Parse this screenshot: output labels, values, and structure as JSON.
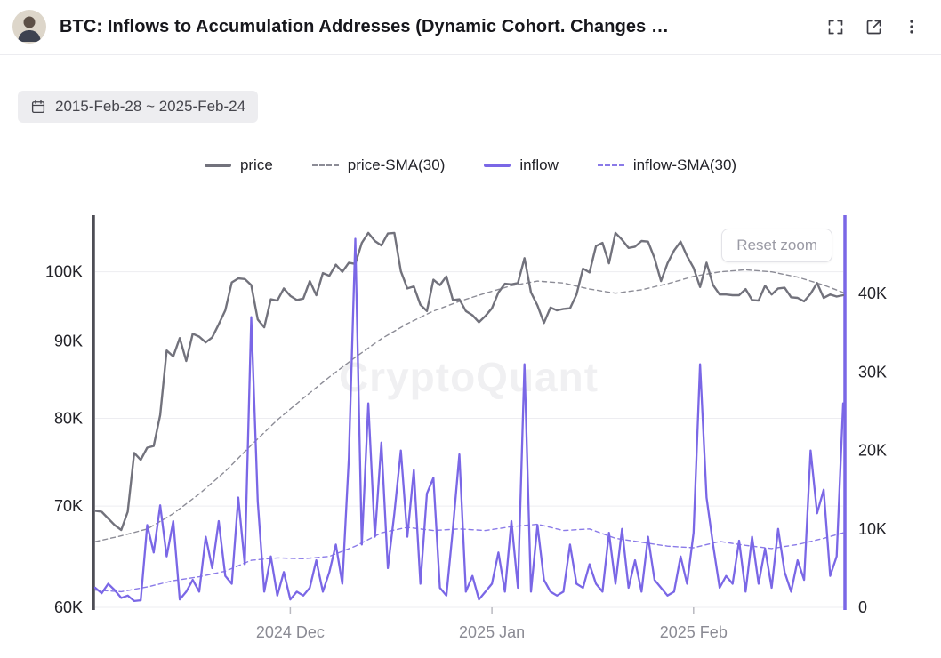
{
  "header": {
    "title": "BTC: Inflows to Accumulation Addresses (Dynamic Cohort. Changes …"
  },
  "date_range": {
    "label": "2015-Feb-28 ~ 2025-Feb-24"
  },
  "legend": {
    "items": [
      {
        "label": "price",
        "color": "#72727c",
        "dash": false
      },
      {
        "label": "price-SMA(30)",
        "color": "#8c8c96",
        "dash": true
      },
      {
        "label": "inflow",
        "color": "#7a67e6",
        "dash": false
      },
      {
        "label": "inflow-SMA(30)",
        "color": "#8a7ae8",
        "dash": true
      }
    ]
  },
  "controls": {
    "reset_zoom": "Reset zoom"
  },
  "watermark": "CryptoQuant",
  "chart_data": {
    "type": "line",
    "title": "BTC: Inflows to Accumulation Addresses (Dynamic Cohort)",
    "x_count": 116,
    "x_ticks": [
      {
        "label": "2024 Dec",
        "index": 30
      },
      {
        "label": "2025 Jan",
        "index": 61
      },
      {
        "label": "2025 Feb",
        "index": 92
      }
    ],
    "y_left": {
      "name": "price",
      "scale": "log",
      "unit": "USD, thousands",
      "range": [
        60,
        109
      ],
      "axis_color": "#4d4d55",
      "ticks": [
        {
          "label": "60K",
          "value": 60
        },
        {
          "label": "70K",
          "value": 70
        },
        {
          "label": "80K",
          "value": 80
        },
        {
          "label": "90K",
          "value": 90
        },
        {
          "label": "100K",
          "value": 100
        }
      ]
    },
    "y_right": {
      "name": "inflow",
      "scale": "linear",
      "unit": "thousands",
      "range": [
        0,
        50
      ],
      "axis_color": "#7a67e6",
      "ticks": [
        {
          "label": "0",
          "value": 0
        },
        {
          "label": "10K",
          "value": 10
        },
        {
          "label": "20K",
          "value": 20
        },
        {
          "label": "30K",
          "value": 30
        },
        {
          "label": "40K",
          "value": 40
        }
      ]
    },
    "series": [
      {
        "name": "price-SMA(30)",
        "axis": "left",
        "style": "dashed",
        "color": "#8c8c96",
        "width": 1.4,
        "points": [
          [
            0,
            66.3
          ],
          [
            4,
            66.9
          ],
          [
            8,
            67.6
          ],
          [
            12,
            69.2
          ],
          [
            16,
            71.3
          ],
          [
            20,
            73.8
          ],
          [
            24,
            76.8
          ],
          [
            28,
            79.8
          ],
          [
            32,
            82.5
          ],
          [
            36,
            85.2
          ],
          [
            40,
            87.8
          ],
          [
            44,
            90.3
          ],
          [
            48,
            92.4
          ],
          [
            52,
            94.2
          ],
          [
            56,
            95.6
          ],
          [
            60,
            96.8
          ],
          [
            64,
            97.9
          ],
          [
            68,
            98.6
          ],
          [
            72,
            98.3
          ],
          [
            76,
            97.4
          ],
          [
            80,
            96.8
          ],
          [
            84,
            97.3
          ],
          [
            88,
            98.2
          ],
          [
            92,
            99.3
          ],
          [
            96,
            100.0
          ],
          [
            100,
            100.3
          ],
          [
            104,
            100.0
          ],
          [
            108,
            99.2
          ],
          [
            112,
            98.0
          ],
          [
            115,
            96.9
          ]
        ]
      },
      {
        "name": "price",
        "axis": "left",
        "style": "solid",
        "color": "#72727c",
        "width": 2.4,
        "values": [
          69.5,
          69.4,
          68.7,
          68.0,
          67.5,
          69.4,
          75.9,
          75.1,
          76.5,
          76.7,
          80.4,
          88.7,
          87.9,
          90.4,
          87.3,
          91.0,
          90.6,
          89.8,
          90.5,
          92.3,
          94.3,
          98.4,
          99.0,
          98.9,
          98.0,
          93.0,
          91.9,
          95.9,
          95.7,
          97.5,
          96.4,
          95.8,
          96.0,
          98.6,
          96.5,
          99.8,
          99.4,
          101.1,
          100.0,
          101.4,
          101.2,
          104.5,
          106.1,
          104.8,
          104.1,
          106.0,
          106.1,
          100.1,
          97.5,
          97.8,
          95.1,
          94.2,
          98.8,
          98.0,
          99.3,
          95.8,
          95.9,
          94.2,
          93.6,
          92.6,
          93.5,
          94.6,
          96.9,
          98.2,
          98.1,
          98.3,
          102.1,
          96.9,
          95.0,
          92.5,
          94.7,
          94.3,
          94.5,
          94.6,
          96.6,
          100.5,
          99.9,
          104.0,
          104.5,
          101.3,
          106.1,
          105.0,
          103.7,
          103.9,
          104.8,
          104.7,
          102.1,
          98.6,
          101.3,
          103.3,
          104.7,
          102.4,
          100.6,
          97.7,
          101.4,
          98.0,
          96.6,
          96.6,
          96.5,
          96.5,
          97.4,
          95.8,
          95.7,
          97.9,
          96.6,
          97.5,
          97.6,
          96.2,
          96.1,
          95.6,
          96.7,
          98.3,
          96.1,
          96.6,
          96.3,
          96.5
        ]
      },
      {
        "name": "inflow-SMA(30)",
        "axis": "right",
        "style": "dashed",
        "color": "#8a7ae8",
        "width": 1.4,
        "points": [
          [
            0,
            2.2
          ],
          [
            4,
            2.0
          ],
          [
            8,
            2.6
          ],
          [
            12,
            3.4
          ],
          [
            16,
            3.9
          ],
          [
            20,
            4.6
          ],
          [
            24,
            6.0
          ],
          [
            28,
            6.3
          ],
          [
            32,
            6.2
          ],
          [
            36,
            6.5
          ],
          [
            40,
            7.8
          ],
          [
            44,
            9.5
          ],
          [
            48,
            10.2
          ],
          [
            52,
            9.8
          ],
          [
            56,
            10.0
          ],
          [
            60,
            9.8
          ],
          [
            64,
            10.3
          ],
          [
            68,
            10.6
          ],
          [
            72,
            9.8
          ],
          [
            76,
            10.0
          ],
          [
            80,
            8.8
          ],
          [
            84,
            8.3
          ],
          [
            88,
            7.8
          ],
          [
            92,
            7.6
          ],
          [
            96,
            8.4
          ],
          [
            100,
            7.9
          ],
          [
            104,
            7.5
          ],
          [
            108,
            8.0
          ],
          [
            112,
            8.8
          ],
          [
            115,
            9.5
          ]
        ]
      },
      {
        "name": "inflow",
        "axis": "right",
        "style": "solid",
        "color": "#7a67e6",
        "width": 2.3,
        "values": [
          2.5,
          1.8,
          3.0,
          2.2,
          1.2,
          1.5,
          0.8,
          0.9,
          10.5,
          7.0,
          13.0,
          6.5,
          11.0,
          1.0,
          2.0,
          3.5,
          2.0,
          9.0,
          5.0,
          11.0,
          4.0,
          3.0,
          14.0,
          5.5,
          37.0,
          13.5,
          2.0,
          6.5,
          1.5,
          4.5,
          1.0,
          2.0,
          1.5,
          2.5,
          6.0,
          2.0,
          4.5,
          8.0,
          3.0,
          19.0,
          47.0,
          8.0,
          26.0,
          9.0,
          21.0,
          5.0,
          12.0,
          20.0,
          9.0,
          17.5,
          3.0,
          14.5,
          16.5,
          2.5,
          1.5,
          10.0,
          19.5,
          2.0,
          4.0,
          1.0,
          2.0,
          3.0,
          7.0,
          2.0,
          11.0,
          2.5,
          31.0,
          2.0,
          10.5,
          3.5,
          2.0,
          1.5,
          2.0,
          8.0,
          3.0,
          2.5,
          5.5,
          3.0,
          2.0,
          9.5,
          3.0,
          10.0,
          2.5,
          6.0,
          2.0,
          9.0,
          3.5,
          2.5,
          1.5,
          2.0,
          6.5,
          3.0,
          9.5,
          31.0,
          14.0,
          8.0,
          2.5,
          4.0,
          3.0,
          8.5,
          2.0,
          9.0,
          3.0,
          7.5,
          2.5,
          10.0,
          4.5,
          2.0,
          6.0,
          3.5,
          20.0,
          12.0,
          15.0,
          4.0,
          6.5,
          26.0
        ]
      }
    ]
  }
}
